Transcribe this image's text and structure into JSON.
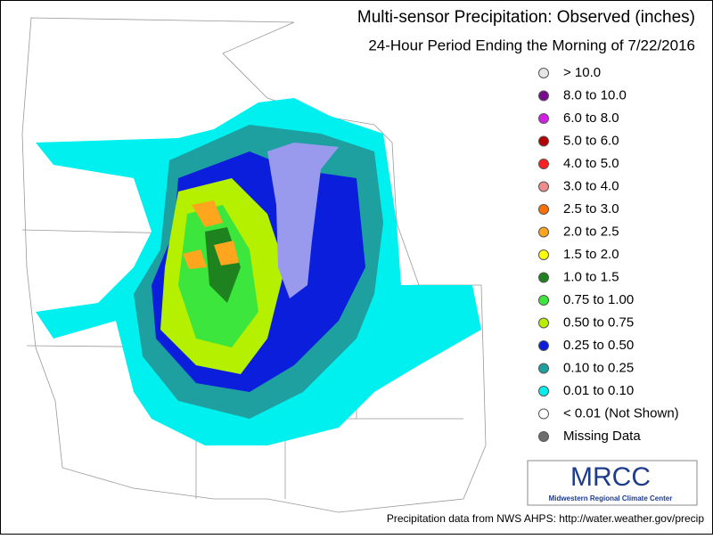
{
  "title": "Multi-sensor Precipitation:  Observed (inches)",
  "subtitle": "24-Hour Period Ending the Morning of 7/22/2016",
  "legend": [
    {
      "label": "> 10.0",
      "color": "#e6e6e6"
    },
    {
      "label": "8.0 to 10.0",
      "color": "#780a8c"
    },
    {
      "label": "6.0 to 8.0",
      "color": "#d21ee6"
    },
    {
      "label": "5.0 to 6.0",
      "color": "#b40000"
    },
    {
      "label": "4.0 to 5.0",
      "color": "#ff1e1e"
    },
    {
      "label": "3.0 to 4.0",
      "color": "#f08c8c"
    },
    {
      "label": "2.5 to 3.0",
      "color": "#ff6e00"
    },
    {
      "label": "2.0 to 2.5",
      "color": "#ffa51e"
    },
    {
      "label": "1.5 to 2.0",
      "color": "#ffff00"
    },
    {
      "label": "1.0 to 1.5",
      "color": "#1e821e"
    },
    {
      "label": "0.75 to 1.00",
      "color": "#3ce63c"
    },
    {
      "label": "0.50 to 0.75",
      "color": "#b4f000"
    },
    {
      "label": "0.25 to 0.50",
      "color": "#0a1edc"
    },
    {
      "label": "0.10 to 0.25",
      "color": "#1ea0a0"
    },
    {
      "label": "0.01 to 0.10",
      "color": "#00f0f0"
    },
    {
      "label": "< 0.01 (Not Shown)",
      "color": "#ffffff"
    },
    {
      "label": "Missing Data",
      "color": "#6e6e6e"
    }
  ],
  "logo": {
    "name": "MRCC",
    "full_name": "Midwestern Regional Climate Center"
  },
  "footer": "Precipitation data from NWS AHPS: http://water.weather.gov/precip"
}
